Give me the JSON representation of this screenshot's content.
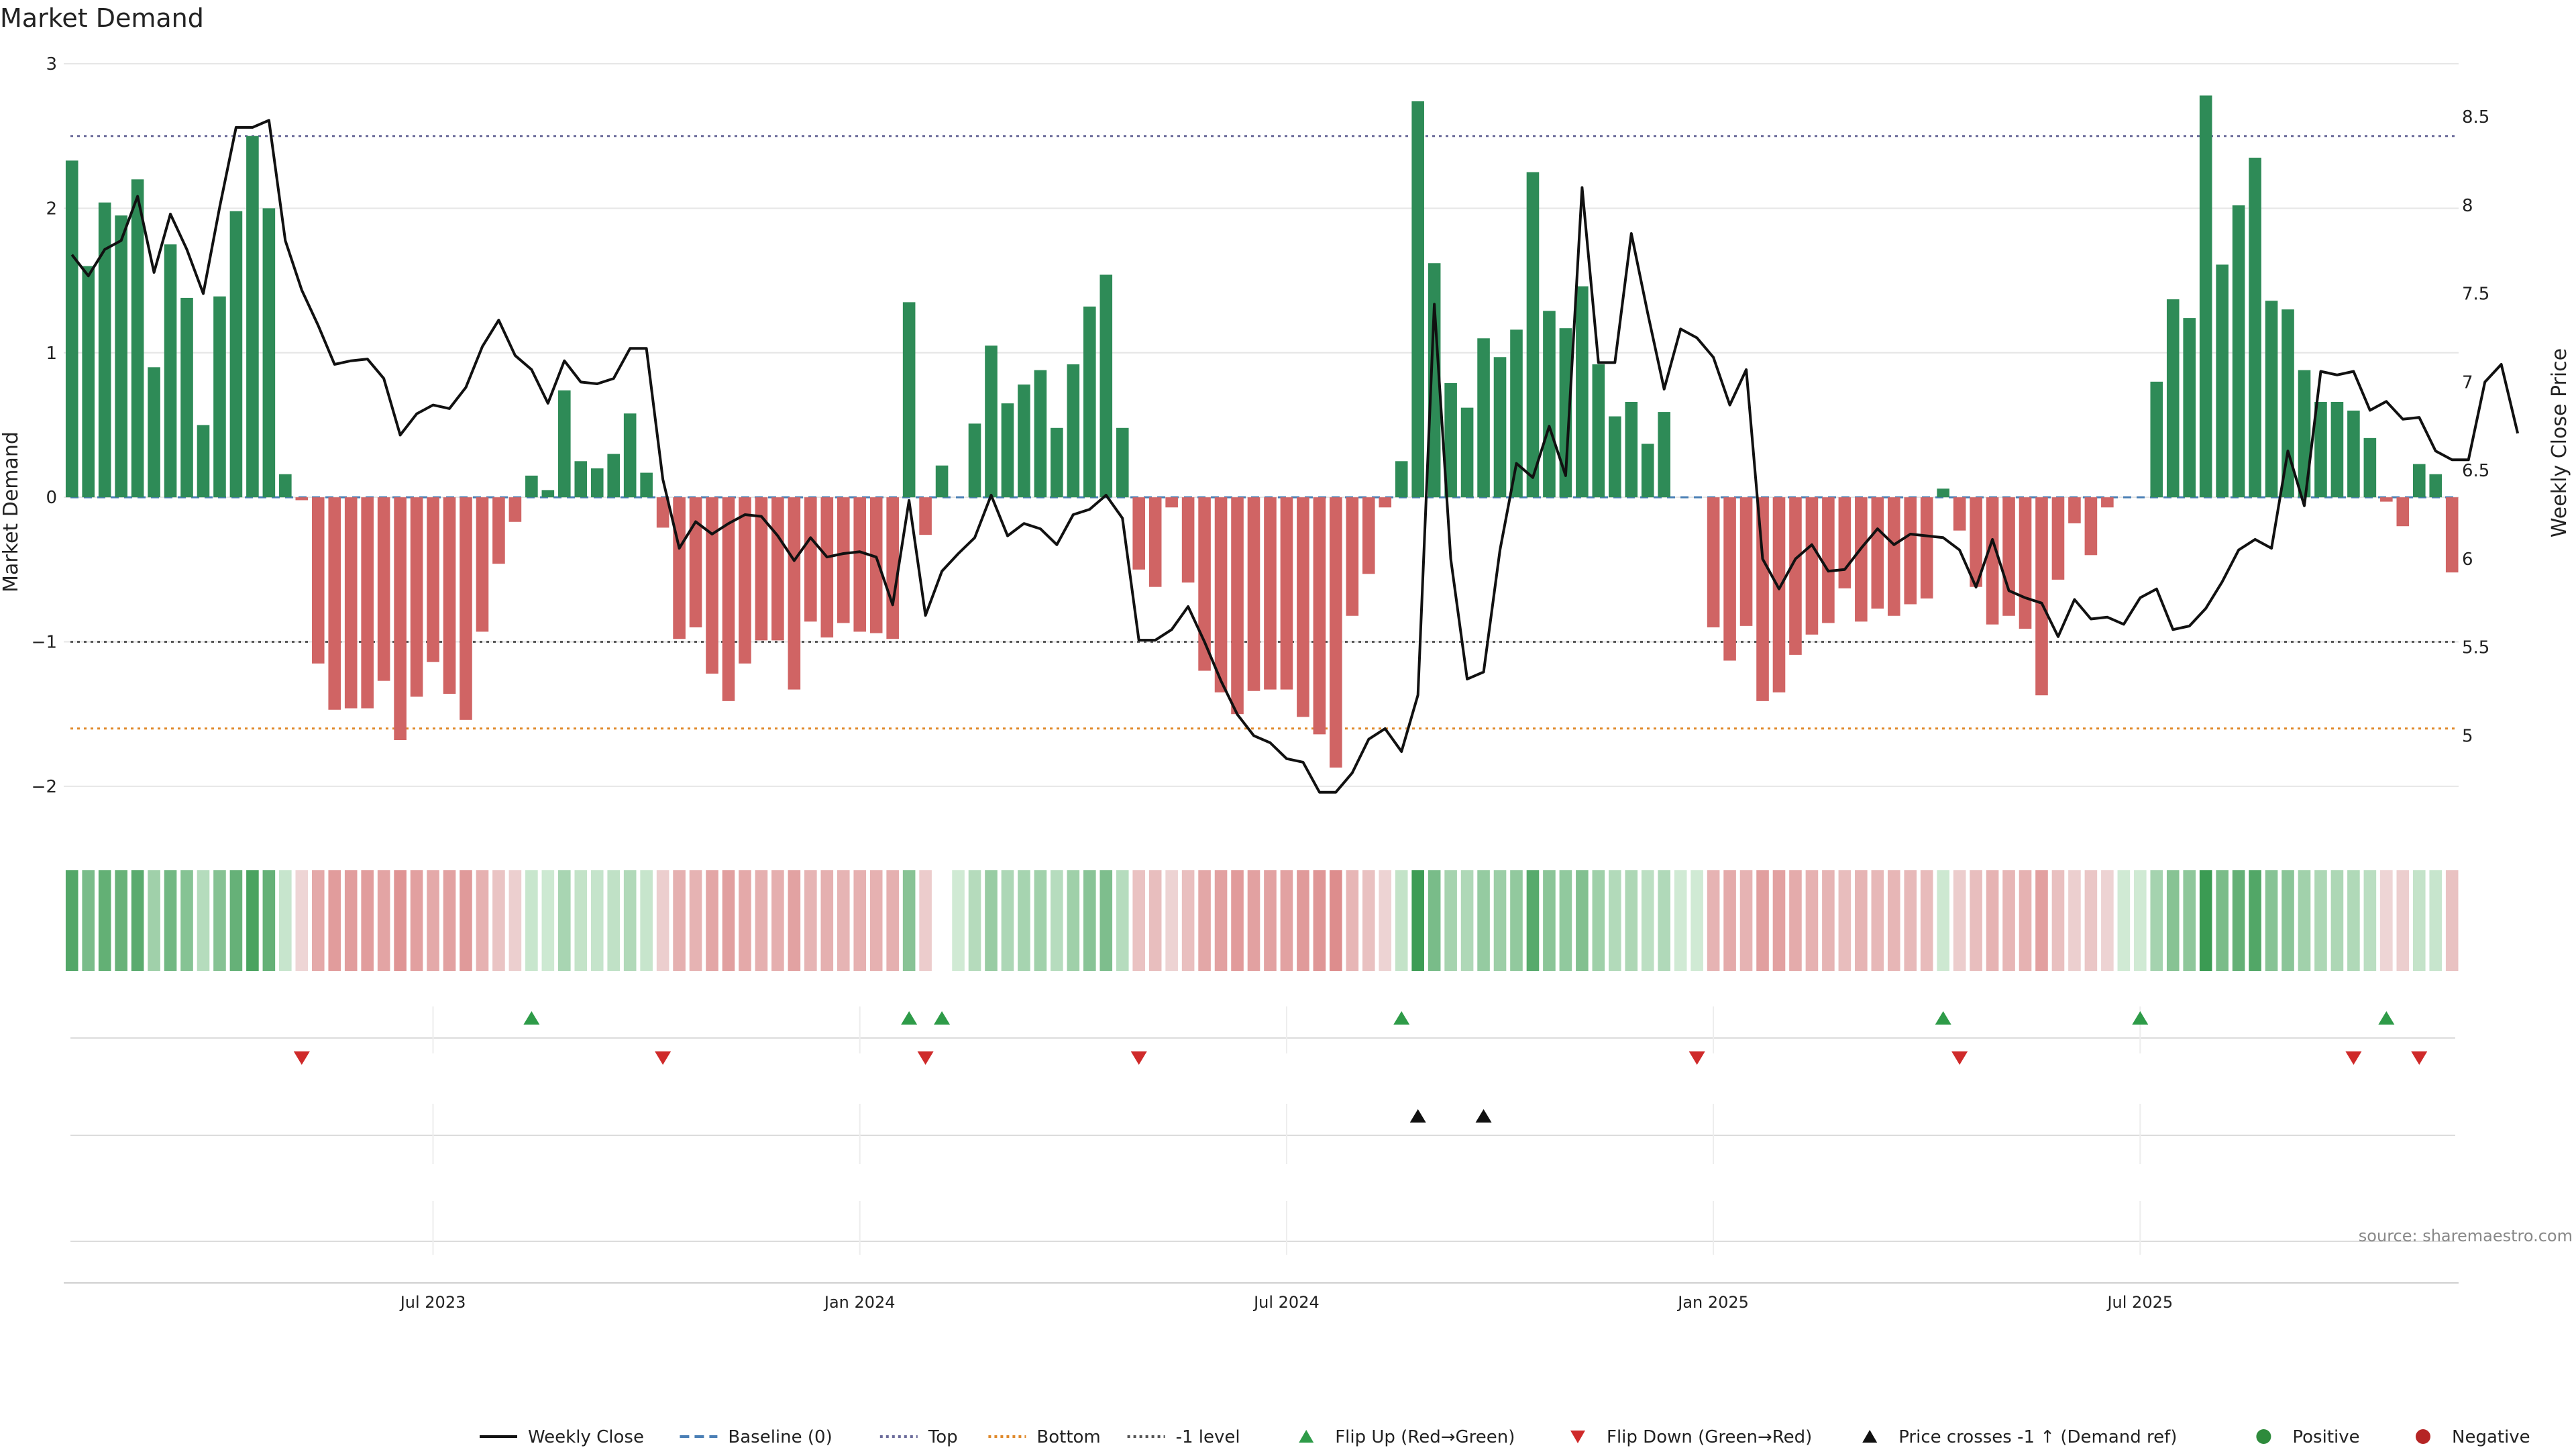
{
  "chart_data": {
    "type": "bar",
    "title": "Market Demand",
    "ylabel": "Market Demand",
    "y2label": "Weekly Close Price",
    "ylim": [
      -2.2,
      3.0
    ],
    "y2lim": [
      4.55,
      8.8
    ],
    "y_ticks": [
      {
        "value": -2,
        "label": "−2"
      },
      {
        "value": -1,
        "label": "−1"
      },
      {
        "value": 0,
        "label": "0"
      },
      {
        "value": 1,
        "label": "1"
      },
      {
        "value": 2,
        "label": "2"
      },
      {
        "value": 3,
        "label": "3"
      }
    ],
    "y2_ticks": [
      {
        "value": 5,
        "label": "5"
      },
      {
        "value": 5.5,
        "label": "5.5"
      },
      {
        "value": 6,
        "label": "6"
      },
      {
        "value": 6.5,
        "label": "6.5"
      },
      {
        "value": 7,
        "label": "7"
      },
      {
        "value": 7.5,
        "label": "7.5"
      },
      {
        "value": 8,
        "label": "8"
      },
      {
        "value": 8.5,
        "label": "8.5"
      }
    ],
    "x_ticks": [
      {
        "week": 22,
        "label": "Jul 2023"
      },
      {
        "week": 48,
        "label": "Jan 2024"
      },
      {
        "week": 74,
        "label": "Jul 2024"
      },
      {
        "week": 100,
        "label": "Jan 2025"
      },
      {
        "week": 126,
        "label": "Jul 2025"
      }
    ],
    "levels": {
      "top": 2.5,
      "bottom": -1.6,
      "minus_one": -1,
      "baseline": 0
    },
    "demand": [
      2.33,
      1.6,
      2.04,
      1.95,
      2.2,
      0.9,
      1.75,
      1.38,
      0.5,
      1.39,
      1.98,
      2.5,
      2.0,
      0.16,
      -0.02,
      -1.15,
      -1.47,
      -1.46,
      -1.46,
      -1.27,
      -1.68,
      -1.38,
      -1.14,
      -1.36,
      -1.54,
      -0.93,
      -0.46,
      -0.17,
      0.15,
      0.05,
      0.74,
      0.25,
      0.2,
      0.3,
      0.58,
      0.17,
      -0.21,
      -0.98,
      -0.9,
      -1.22,
      -1.41,
      -1.15,
      -0.99,
      -0.99,
      -1.33,
      -0.86,
      -0.97,
      -0.87,
      -0.93,
      -0.94,
      -0.98,
      1.35,
      -0.26,
      0.22,
      0.0,
      0.51,
      1.05,
      0.65,
      0.78,
      0.88,
      0.48,
      0.92,
      1.32,
      1.54,
      0.48,
      -0.5,
      -0.62,
      -0.07,
      -0.59,
      -1.2,
      -1.35,
      -1.5,
      -1.34,
      -1.33,
      -1.33,
      -1.52,
      -1.64,
      -1.87,
      -0.82,
      -0.53,
      -0.07,
      0.25,
      2.74,
      1.62,
      0.79,
      0.62,
      1.1,
      0.97,
      1.16,
      2.25,
      1.29,
      1.17,
      1.46,
      0.92,
      0.56,
      0.66,
      0.37,
      0.59,
      0.0,
      0.0,
      -0.9,
      -1.13,
      -0.89,
      -1.41,
      -1.35,
      -1.09,
      -0.95,
      -0.87,
      -0.63,
      -0.86,
      -0.77,
      -0.82,
      -0.74,
      -0.7,
      0.06,
      -0.23,
      -0.62,
      -0.88,
      -0.82,
      -0.91,
      -1.37,
      -0.57,
      -0.18,
      -0.4,
      -0.07,
      0.0,
      0.0,
      0.8,
      1.37,
      1.24,
      2.78,
      1.61,
      2.02,
      2.35,
      1.36,
      1.3,
      0.88,
      0.66,
      0.66,
      0.6,
      0.41,
      -0.03,
      -0.2,
      0.23,
      0.16,
      -0.52
    ],
    "close": [
      7.72,
      7.6,
      7.75,
      7.8,
      8.05,
      7.62,
      7.95,
      7.75,
      7.5,
      7.99,
      8.44,
      8.44,
      8.48,
      7.8,
      7.52,
      7.32,
      7.1,
      7.12,
      7.13,
      7.02,
      6.7,
      6.82,
      6.87,
      6.85,
      6.97,
      7.2,
      7.35,
      7.15,
      7.07,
      6.88,
      7.12,
      7.0,
      6.99,
      7.02,
      7.19,
      7.19,
      6.45,
      6.06,
      6.21,
      6.14,
      6.2,
      6.25,
      6.24,
      6.13,
      5.99,
      6.12,
      6.01,
      6.03,
      6.04,
      6.01,
      5.74,
      6.33,
      5.68,
      5.93,
      6.03,
      6.12,
      6.36,
      6.13,
      6.2,
      6.17,
      6.08,
      6.25,
      6.28,
      6.36,
      6.23,
      5.54,
      5.54,
      5.6,
      5.73,
      5.53,
      5.31,
      5.12,
      5.0,
      4.96,
      4.87,
      4.85,
      4.68,
      4.68,
      4.79,
      4.98,
      5.04,
      4.91,
      5.23,
      7.44,
      6.0,
      5.32,
      5.36,
      6.05,
      6.54,
      6.46,
      6.75,
      6.47,
      8.1,
      7.11,
      7.11,
      7.84,
      7.39,
      6.96,
      7.3,
      7.25,
      7.14,
      6.87,
      7.07,
      6.0,
      5.83,
      6.0,
      6.08,
      5.93,
      5.94,
      6.06,
      6.17,
      6.08,
      6.14,
      6.13,
      6.12,
      6.05,
      5.84,
      6.11,
      5.82,
      5.78,
      5.75,
      5.56,
      5.77,
      5.66,
      5.67,
      5.63,
      5.78,
      5.83,
      5.6,
      5.62,
      5.72,
      5.87,
      6.05,
      6.11,
      6.06,
      6.61,
      6.3,
      7.06,
      7.04,
      7.06,
      6.84,
      6.89,
      6.79,
      6.8,
      6.61,
      6.56,
      6.56,
      7.0,
      7.1,
      6.71
    ],
    "signal_gaps": [
      53
    ],
    "flip_up_weeks": [
      28,
      51,
      53,
      81,
      114,
      126,
      141
    ],
    "flip_down_weeks": [
      14,
      36,
      52,
      65,
      99,
      115,
      139,
      143
    ],
    "price_cross_weeks": [
      82,
      86
    ],
    "source": "source: sharemaestro.com",
    "legend": [
      {
        "label": "Weekly Close",
        "symbol": "line",
        "color": "#111111"
      },
      {
        "label": "Baseline (0)",
        "symbol": "dash",
        "color": "#4a7fb5"
      },
      {
        "label": "Top",
        "symbol": "dot",
        "color": "#6b6b9a"
      },
      {
        "label": "Bottom",
        "symbol": "dot",
        "color": "#e08a2c"
      },
      {
        "label": "-1 level",
        "symbol": "dot",
        "color": "#555555"
      },
      {
        "label": "Flip Up (Red→Green)",
        "symbol": "tri-up",
        "color": "#2e9b48"
      },
      {
        "label": "Flip Down (Green→Red)",
        "symbol": "tri-down",
        "color": "#cf2a2a"
      },
      {
        "label": "Price crosses -1 ↑ (Demand ref)",
        "symbol": "tri-up",
        "color": "#111111"
      },
      {
        "label": "Positive",
        "symbol": "circle",
        "color": "#2e8b3c"
      },
      {
        "label": "Negative",
        "symbol": "circle",
        "color": "#b52424"
      }
    ],
    "colors": {
      "positive_bar": "#2e8b57",
      "negative_bar": "#d06464",
      "close_line": "#111111",
      "top_line": "#6b6b9a",
      "bottom_line": "#e08a2c",
      "minus_one_line": "#555555",
      "baseline": "#4a7fb5",
      "flip_up": "#2e9b48",
      "flip_down": "#cf2a2a",
      "price_cross": "#111111",
      "grid": "#e6e6e6"
    }
  }
}
